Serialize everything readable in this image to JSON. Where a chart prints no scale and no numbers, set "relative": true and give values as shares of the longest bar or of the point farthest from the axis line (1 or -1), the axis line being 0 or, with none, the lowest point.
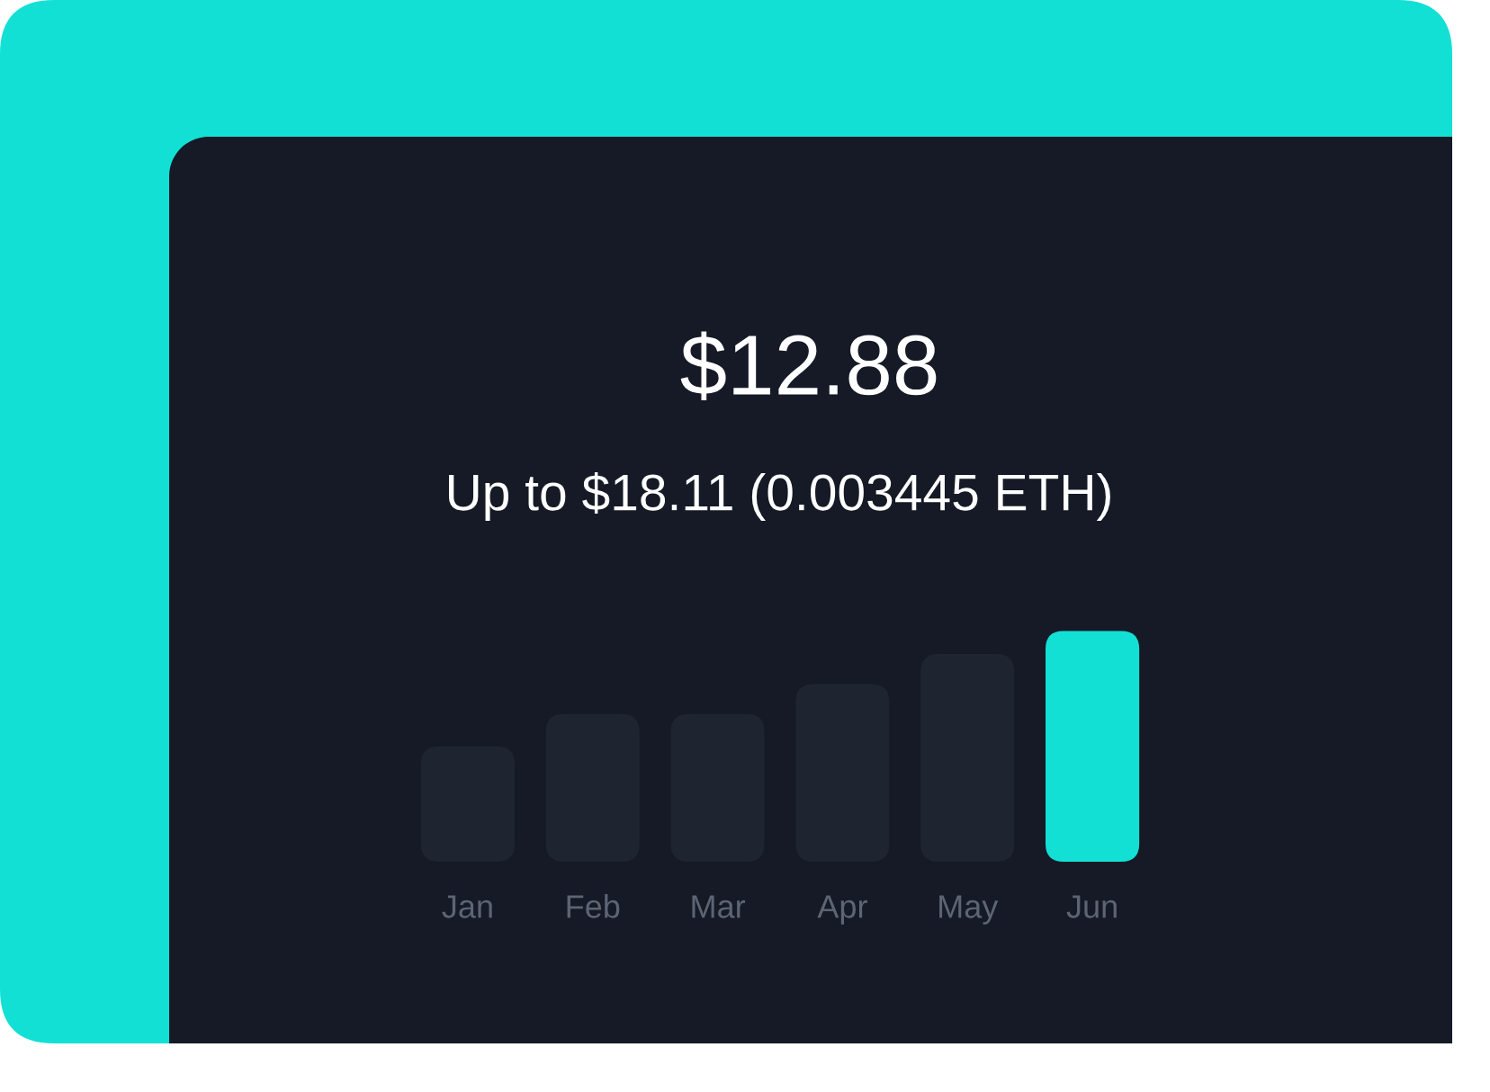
{
  "chart_data": {
    "type": "bar",
    "title": "$12.88",
    "subtitle": "Up to $18.11 (0.003445 ETH)",
    "categories": [
      "Jan",
      "Feb",
      "Mar",
      "Apr",
      "May",
      "Jun"
    ],
    "values": [
      0.5,
      0.64,
      0.64,
      0.77,
      0.9,
      1
    ],
    "colors": [
      "#1f2530",
      "#1f2530",
      "#1f2530",
      "#1f2530",
      "#1f2530",
      "#13e0d4"
    ],
    "relative": true
  }
}
